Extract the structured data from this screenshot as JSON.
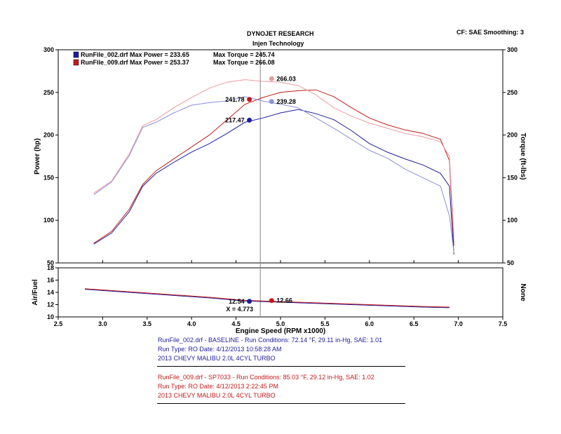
{
  "header": {
    "title": "DYNOJET RESEARCH",
    "subtitle": "Injen Technology",
    "settings": "CF: SAE  Smoothing: 3"
  },
  "colors": {
    "blue": "#1d1d9e",
    "red": "#c41a1a",
    "cursor": "#888888"
  },
  "chart_data": [
    {
      "type": "line",
      "xlabel": "Engine Speed  (RPM x1000)",
      "ylabel": "Power (hp)",
      "y2label": "Torque (ft-lbs)",
      "xlim": [
        2.5,
        7.5
      ],
      "ylim": [
        50,
        300
      ],
      "y2lim": [
        50,
        300
      ],
      "x_ticks": [
        "2.5",
        "3.0",
        "3.5",
        "4.0",
        "4.5",
        "5.0",
        "5.5",
        "6.0",
        "6.5",
        "7.0",
        "7.5"
      ],
      "y_ticks": [
        "50",
        "100",
        "150",
        "200",
        "250",
        "300"
      ],
      "legend": [
        {
          "file": "RunFile_002.drf",
          "power_label": "Max Power = 233.65",
          "torque_label": "Max Torque = 245.74",
          "color": "#1d1d9e"
        },
        {
          "file": "RunFile_009.drf",
          "power_label": "Max Power = 253.37",
          "torque_label": "Max Torque = 266.08",
          "color": "#c41a1a"
        }
      ],
      "cursor_x": 4.773,
      "markers": [
        {
          "x": 4.65,
          "y": 241.78,
          "label": "241.78",
          "color": "#c41a1a",
          "side": "left"
        },
        {
          "x": 4.65,
          "y": 217.47,
          "label": "217.47",
          "color": "#1d1d9e",
          "side": "left"
        },
        {
          "x": 4.9,
          "y": 266.03,
          "label": "266.03",
          "color": "#e89aa0",
          "side": "right"
        },
        {
          "x": 4.9,
          "y": 239.28,
          "label": "239.28",
          "color": "#8a8fd8",
          "side": "right"
        }
      ],
      "series": [
        {
          "name": "RunFile_002.drf Power",
          "color": "#1d1d9e",
          "x": [
            2.9,
            3.1,
            3.3,
            3.45,
            3.6,
            3.8,
            4.0,
            4.2,
            4.4,
            4.6,
            4.8,
            5.0,
            5.2,
            5.4,
            5.6,
            5.8,
            6.0,
            6.2,
            6.4,
            6.6,
            6.8,
            6.9,
            6.95
          ],
          "y": [
            72,
            85,
            110,
            140,
            155,
            168,
            180,
            190,
            202,
            215,
            220,
            226,
            230,
            225,
            218,
            205,
            190,
            180,
            172,
            165,
            155,
            140,
            60
          ]
        },
        {
          "name": "RunFile_009.drf Power",
          "color": "#c41a1a",
          "x": [
            2.9,
            3.1,
            3.3,
            3.45,
            3.6,
            3.8,
            4.0,
            4.2,
            4.4,
            4.6,
            4.8,
            5.0,
            5.2,
            5.4,
            5.6,
            5.8,
            6.0,
            6.2,
            6.4,
            6.6,
            6.8,
            6.9,
            6.95
          ],
          "y": [
            73,
            87,
            113,
            142,
            158,
            172,
            186,
            200,
            218,
            236,
            244,
            250,
            252,
            253,
            245,
            232,
            220,
            212,
            206,
            202,
            195,
            170,
            70
          ]
        },
        {
          "name": "RunFile_002.drf Torque",
          "color": "#8a8fd8",
          "x": [
            2.9,
            3.1,
            3.3,
            3.45,
            3.6,
            3.8,
            4.0,
            4.2,
            4.4,
            4.6,
            4.8,
            5.0,
            5.2,
            5.4,
            5.6,
            5.8,
            6.0,
            6.2,
            6.4,
            6.6,
            6.8,
            6.9,
            6.95
          ],
          "y": [
            130,
            145,
            176,
            209,
            215,
            226,
            235,
            238,
            240,
            245,
            240,
            236,
            232,
            220,
            208,
            195,
            182,
            173,
            160,
            150,
            140,
            105,
            62
          ]
        },
        {
          "name": "RunFile_009.drf Torque",
          "color": "#e89aa0",
          "x": [
            2.9,
            3.1,
            3.3,
            3.45,
            3.6,
            3.8,
            4.0,
            4.2,
            4.4,
            4.6,
            4.8,
            5.0,
            5.2,
            5.4,
            5.6,
            5.8,
            6.0,
            6.2,
            6.4,
            6.6,
            6.8,
            6.9,
            6.95
          ],
          "y": [
            132,
            146,
            178,
            211,
            218,
            232,
            244,
            255,
            262,
            265,
            263,
            262,
            258,
            247,
            232,
            222,
            214,
            208,
            202,
            198,
            192,
            175,
            80
          ]
        }
      ]
    },
    {
      "type": "line",
      "ylabel": "Air/Fuel",
      "y2label": "None",
      "xlim": [
        2.5,
        7.5
      ],
      "ylim": [
        10,
        18
      ],
      "y_ticks": [
        "10",
        "12",
        "14",
        "16",
        "18"
      ],
      "cursor_label": "X = 4.773",
      "markers": [
        {
          "x": 4.65,
          "y": 12.54,
          "label": "12.54",
          "color": "#1d1d9e",
          "side": "left"
        },
        {
          "x": 4.9,
          "y": 12.66,
          "label": "12.66",
          "color": "#c41a1a",
          "side": "right"
        }
      ],
      "series": [
        {
          "name": "RunFile_002.drf AFR",
          "color": "#1d1d9e",
          "x": [
            2.8,
            3.0,
            3.4,
            3.8,
            4.2,
            4.6,
            5.0,
            5.4,
            5.8,
            6.2,
            6.6,
            6.9
          ],
          "y": [
            14.5,
            14.3,
            13.9,
            13.5,
            13.1,
            12.6,
            12.4,
            12.2,
            12.0,
            11.8,
            11.6,
            11.5
          ]
        },
        {
          "name": "RunFile_009.drf AFR",
          "color": "#c41a1a",
          "x": [
            2.8,
            3.0,
            3.4,
            3.8,
            4.2,
            4.6,
            5.0,
            5.4,
            5.8,
            6.2,
            6.6,
            6.9
          ],
          "y": [
            14.6,
            14.4,
            14.0,
            13.6,
            13.2,
            12.7,
            12.5,
            12.3,
            12.1,
            11.9,
            11.7,
            11.6
          ]
        }
      ]
    }
  ],
  "runs": [
    {
      "line1": "RunFile_002.drf - BASELINE  -  Run Conditions: 72.14 °F, 29.11 in-Hg, SAE: 1.01",
      "line2": "Run Type: RO  Date: 4/12/2013 10:58:28 AM",
      "line3": "2013 CHEVY MALIBU 2.0L 4CYL TURBO"
    },
    {
      "line1": "RunFile_009.drf - SP7033  -  Run Conditions: 85.03 °F, 29.12 in-Hg, SAE: 1.02",
      "line2": "Run Type: RO  Date: 4/12/2013 2:22:45 PM",
      "line3": "2013 CHEVY MALIBU 2.0L 4CYL TURBO"
    }
  ]
}
